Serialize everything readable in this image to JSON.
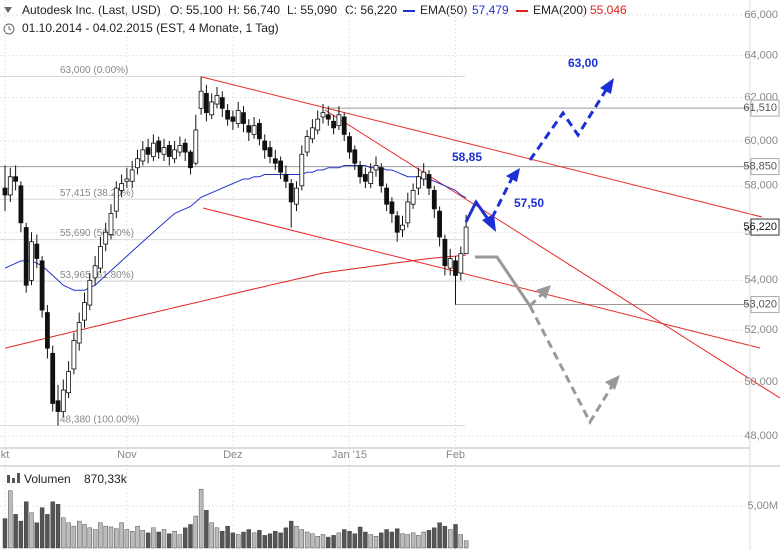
{
  "chart_data": {
    "type": "candlestick",
    "title": "Autodesk Inc. (Last, USD)",
    "period": "01.10.2014 - 04.02.2015 (EST, 4 Monate, 1 Tag)",
    "ohlc_labels": [
      "O: 55,100",
      "H: 56,740",
      "L: 55,090",
      "C: 56,220"
    ],
    "categories": [
      "kt",
      null,
      null,
      null,
      null,
      null,
      null,
      null,
      null,
      null,
      null,
      null,
      null,
      null,
      null,
      null,
      null,
      null,
      null,
      null,
      null,
      null,
      null,
      "Nov",
      null,
      null,
      null,
      null,
      null,
      null,
      null,
      null,
      null,
      null,
      null,
      null,
      null,
      null,
      null,
      null,
      null,
      null,
      null,
      "Dez",
      null,
      null,
      null,
      null,
      null,
      null,
      null,
      null,
      null,
      null,
      null,
      null,
      null,
      null,
      null,
      null,
      null,
      null,
      null,
      null,
      null,
      "Jan '15",
      null,
      null,
      null,
      null,
      null,
      null,
      null,
      null,
      null,
      null,
      null,
      null,
      null,
      null,
      null,
      null,
      null,
      null,
      null,
      "Feb",
      null,
      null
    ],
    "open": [
      57.9,
      57.6,
      58.4,
      58.0,
      56.2,
      54.0,
      55.5,
      54.8,
      52.7,
      51.1,
      49.3,
      48.9,
      49.6,
      50.5,
      51.5,
      52.4,
      53.0,
      54.1,
      54.5,
      55.5,
      55.9,
      56.9,
      57.8,
      58.2,
      58.2,
      58.8,
      59.1,
      59.7,
      59.3,
      60.0,
      59.4,
      59.8,
      59.2,
      59.5,
      59.9,
      59.5,
      59.0,
      61.5,
      62.2,
      61.2,
      61.7,
      62.0,
      61.4,
      61.1,
      60.8,
      61.3,
      60.7,
      60.3,
      60.8,
      60.0,
      59.7,
      59.2,
      59.1,
      58.5,
      58.1,
      57.2,
      58.0,
      59.5,
      60.1,
      60.5,
      61.1,
      61.2,
      60.9,
      60.7,
      61.1,
      60.2,
      59.6,
      58.9,
      58.5,
      58.1,
      58.7,
      58.8,
      57.9,
      57.3,
      56.7,
      56.1,
      56.4,
      57.2,
      57.9,
      58.3,
      58.5,
      57.8,
      56.9,
      55.7,
      54.5,
      54.8,
      54.3,
      55.1
    ],
    "high": [
      58.9,
      58.8,
      58.9,
      58.2,
      56.4,
      56.0,
      55.9,
      55.0,
      53.0,
      51.4,
      49.9,
      50.1,
      50.8,
      51.9,
      52.7,
      53.5,
      54.3,
      55.0,
      55.8,
      56.4,
      57.2,
      58.2,
      58.5,
      58.8,
      59.1,
      59.6,
      60.0,
      60.1,
      60.3,
      60.2,
      60.1,
      60.0,
      60.0,
      60.2,
      60.1,
      59.6,
      61.2,
      63.0,
      62.6,
      62.2,
      62.5,
      62.3,
      61.7,
      61.4,
      61.8,
      61.6,
      61.0,
      61.1,
      61.0,
      60.3,
      60.0,
      59.6,
      59.3,
      58.9,
      58.3,
      58.2,
      59.8,
      60.5,
      61.0,
      61.4,
      61.7,
      61.6,
      61.2,
      61.6,
      61.3,
      60.4,
      59.8,
      59.1,
      58.8,
      59.0,
      59.3,
      59.0,
      58.1,
      57.5,
      56.9,
      56.7,
      57.7,
      58.1,
      58.8,
      59.0,
      58.7,
      58.0,
      57.1,
      55.9,
      55.3,
      55.0,
      55.4,
      56.74
    ],
    "low": [
      56.9,
      57.3,
      57.8,
      56.0,
      53.5,
      53.8,
      54.5,
      52.5,
      50.9,
      48.9,
      48.38,
      48.7,
      49.4,
      50.3,
      51.2,
      52.1,
      52.8,
      53.8,
      54.3,
      55.2,
      55.7,
      56.6,
      57.5,
      57.9,
      57.9,
      58.5,
      58.9,
      59.0,
      59.1,
      59.2,
      59.1,
      58.9,
      59.0,
      59.3,
      59.1,
      58.5,
      58.9,
      61.2,
      60.9,
      61.0,
      61.5,
      61.1,
      60.7,
      60.5,
      60.6,
      60.4,
      60.0,
      60.1,
      59.8,
      59.2,
      59.0,
      58.7,
      58.3,
      57.9,
      56.2,
      56.9,
      57.8,
      59.3,
      59.9,
      60.3,
      60.8,
      60.7,
      60.3,
      60.5,
      60.0,
      59.2,
      58.7,
      58.1,
      57.9,
      57.9,
      58.4,
      57.7,
      56.9,
      56.4,
      55.6,
      55.8,
      56.2,
      57.0,
      57.6,
      58.0,
      57.6,
      56.6,
      55.4,
      54.2,
      54.2,
      53.02,
      54.0,
      55.09
    ],
    "close": [
      57.6,
      58.4,
      58.2,
      56.4,
      53.8,
      55.6,
      54.9,
      52.8,
      51.3,
      49.2,
      48.9,
      49.7,
      50.4,
      51.6,
      52.3,
      53.1,
      54.0,
      54.6,
      55.4,
      56.0,
      56.8,
      57.9,
      58.1,
      58.3,
      58.7,
      59.2,
      59.6,
      59.4,
      59.9,
      59.5,
      59.7,
      59.3,
      59.6,
      59.8,
      59.5,
      58.8,
      60.5,
      62.3,
      61.3,
      61.8,
      62.1,
      61.5,
      61.0,
      60.9,
      61.4,
      60.8,
      60.4,
      60.7,
      60.1,
      59.6,
      59.3,
      59.0,
      58.6,
      58.2,
      57.3,
      57.9,
      59.4,
      60.2,
      60.6,
      61.0,
      61.3,
      61.0,
      60.6,
      61.2,
      60.3,
      59.5,
      59.0,
      58.4,
      58.2,
      58.6,
      58.9,
      58.0,
      57.2,
      56.8,
      56.0,
      56.3,
      57.3,
      57.8,
      58.4,
      58.6,
      57.9,
      57.0,
      55.8,
      54.6,
      54.9,
      54.2,
      55.1,
      56.22
    ],
    "log": true,
    "ylim": [
      47.57,
      66.75
    ],
    "yticks": [
      {
        "value": 48,
        "label": "48,000"
      },
      {
        "value": 50,
        "label": "50,000"
      },
      {
        "value": 52,
        "label": "52,000"
      },
      {
        "value": 54,
        "label": "54,000"
      },
      {
        "value": 56,
        "label": "56,000"
      },
      {
        "value": 58,
        "label": "58,000"
      },
      {
        "value": 60,
        "label": "60,000"
      },
      {
        "value": 62,
        "label": "62,000"
      },
      {
        "value": 64,
        "label": "64,000"
      },
      {
        "value": 66,
        "label": "66,000"
      }
    ],
    "grid": true,
    "indicators": [
      {
        "name": "EMA(50)",
        "color": "#2233cc",
        "value_label": "57,479",
        "values": [
          54.5,
          54.6,
          54.7,
          54.8,
          54.8,
          54.8,
          54.7,
          54.6,
          54.4,
          54.2,
          54.0,
          53.8,
          53.7,
          53.6,
          53.6,
          53.6,
          53.7,
          53.8,
          54.0,
          54.2,
          54.4,
          54.6,
          54.8,
          55.0,
          55.2,
          55.4,
          55.6,
          55.8,
          56.0,
          56.2,
          56.4,
          56.6,
          56.8,
          56.9,
          57.0,
          57.1,
          57.3,
          57.5,
          57.6,
          57.7,
          57.8,
          57.9,
          58.0,
          58.1,
          58.2,
          58.3,
          58.3,
          58.4,
          58.4,
          58.5,
          58.5,
          58.5,
          58.5,
          58.5,
          58.5,
          58.5,
          58.5,
          58.6,
          58.6,
          58.7,
          58.7,
          58.8,
          58.8,
          58.8,
          58.9,
          58.9,
          58.9,
          58.9,
          58.9,
          58.8,
          58.8,
          58.8,
          58.7,
          58.7,
          58.6,
          58.5,
          58.4,
          58.4,
          58.4,
          58.3,
          58.3,
          58.2,
          58.1,
          58.0,
          57.9,
          57.8,
          57.6,
          57.479
        ]
      },
      {
        "name": "EMA(200)",
        "color": "#e02020",
        "value_label": "55,046",
        "values": [
          51.3,
          51.35,
          51.4,
          51.45,
          51.5,
          51.55,
          51.6,
          51.65,
          51.7,
          51.75,
          51.8,
          51.85,
          51.9,
          51.95,
          52.0,
          52.05,
          52.1,
          52.15,
          52.2,
          52.25,
          52.3,
          52.35,
          52.4,
          52.45,
          52.5,
          52.55,
          52.6,
          52.65,
          52.7,
          52.75,
          52.8,
          52.85,
          52.9,
          52.95,
          53.0,
          53.05,
          53.1,
          53.15,
          53.2,
          53.25,
          53.3,
          53.35,
          53.4,
          53.45,
          53.5,
          53.55,
          53.6,
          53.65,
          53.7,
          53.75,
          53.8,
          53.85,
          53.9,
          53.95,
          54.0,
          54.05,
          54.1,
          54.15,
          54.2,
          54.25,
          54.3,
          54.33,
          54.36,
          54.39,
          54.42,
          54.45,
          54.48,
          54.51,
          54.54,
          54.57,
          54.6,
          54.63,
          54.66,
          54.69,
          54.72,
          54.75,
          54.78,
          54.81,
          54.84,
          54.87,
          54.9,
          54.92,
          54.94,
          54.96,
          54.98,
          55.0,
          55.02,
          55.046
        ]
      }
    ],
    "levels": [
      {
        "value": 61.51,
        "label": "61,510"
      },
      {
        "value": 58.85,
        "label": "58,850"
      },
      {
        "value": 56.22,
        "label": "56,220"
      },
      {
        "value": 53.02,
        "label": "53,020"
      }
    ],
    "fibonacci": [
      {
        "value": 63,
        "label": "63,000 (0.00%)"
      },
      {
        "value": 57.415,
        "label": "57,415 (38.20%)"
      },
      {
        "value": 55.69,
        "label": "55,690 (50.00%)"
      },
      {
        "value": 53.965,
        "label": "53,965 (61.80%)"
      },
      {
        "value": 48.38,
        "label": "48,380 (100.00%)"
      }
    ],
    "annotations": [
      "63,00",
      "58,85",
      "57,50"
    ],
    "volume": {
      "label": "Volumen",
      "value_label": "870,33k",
      "ylim": [
        0,
        9.75
      ],
      "yticks": [
        {
          "value": 5,
          "label": "5,00M"
        }
      ],
      "values": [
        3.5,
        6.8,
        4.0,
        3.2,
        5.5,
        4.2,
        3.0,
        4.8,
        4.0,
        5.5,
        5.2,
        3.6,
        3.0,
        2.6,
        3.2,
        2.8,
        2.4,
        2.2,
        3.0,
        2.6,
        2.5,
        2.3,
        3.0,
        2.2,
        2.0,
        2.6,
        2.1,
        1.8,
        2.4,
        1.9,
        2.2,
        1.7,
        2.0,
        1.6,
        2.4,
        2.8,
        3.8,
        7.0,
        4.5,
        3.0,
        2.4,
        2.0,
        2.6,
        1.8,
        1.6,
        1.9,
        2.2,
        1.8,
        2.1,
        1.5,
        1.7,
        2.0,
        1.8,
        2.4,
        3.2,
        2.6,
        2.2,
        1.9,
        1.7,
        1.4,
        1.6,
        1.3,
        1.5,
        1.8,
        2.2,
        2.0,
        1.7,
        2.5,
        1.9,
        1.6,
        1.4,
        1.8,
        2.2,
        1.9,
        2.3,
        1.7,
        1.6,
        1.8,
        1.5,
        1.9,
        2.1,
        2.4,
        3.0,
        2.6,
        2.2,
        2.8,
        1.6,
        0.87033
      ]
    }
  }
}
